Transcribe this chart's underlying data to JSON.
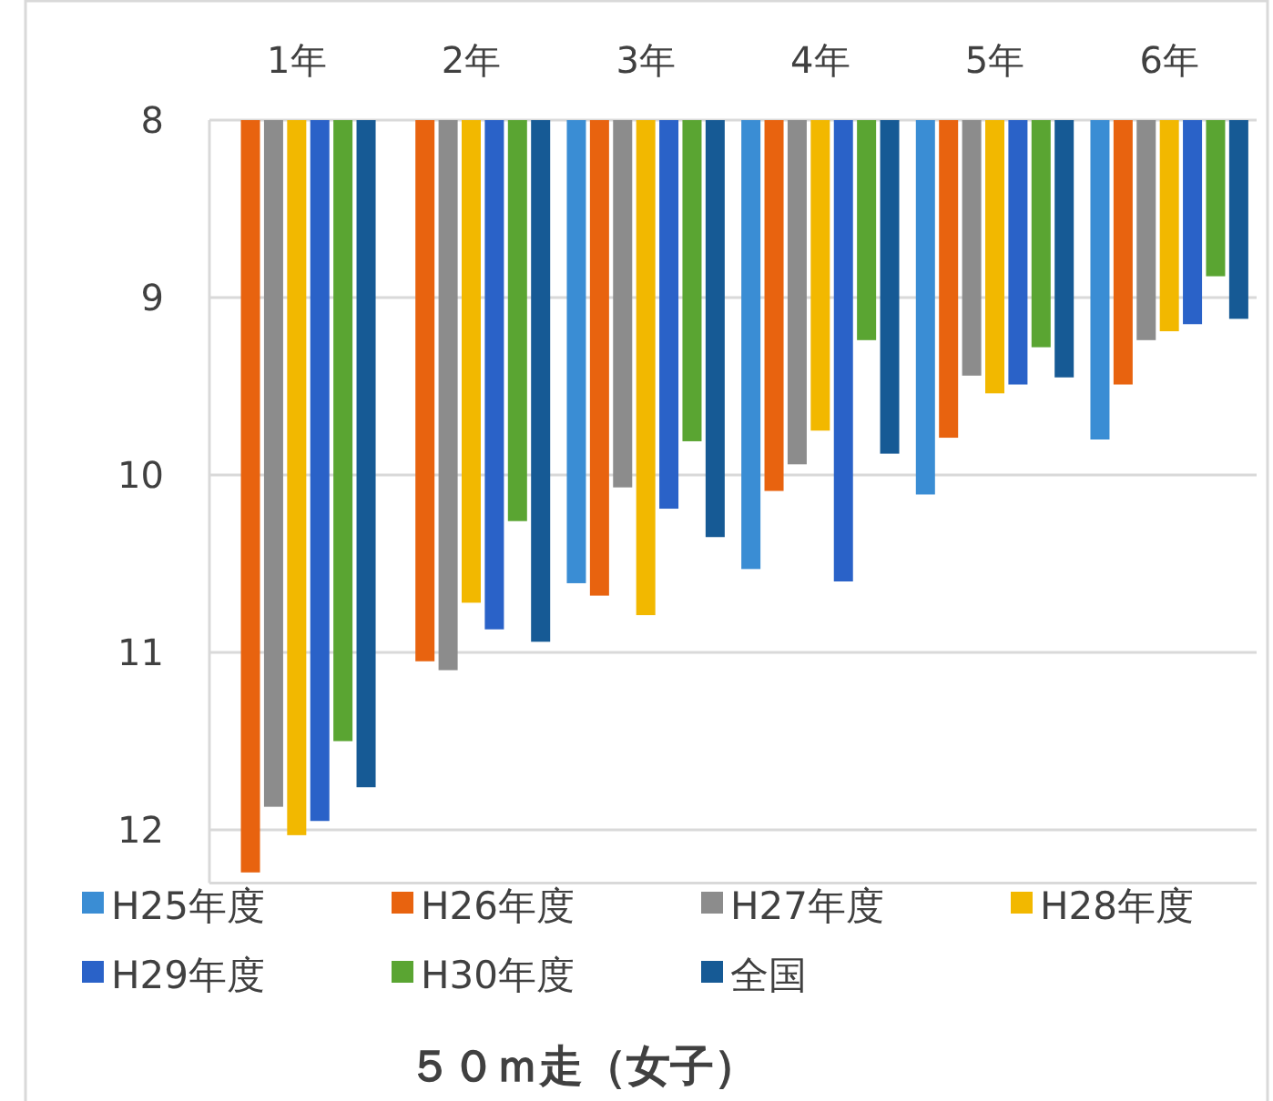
{
  "chart_data": {
    "type": "bar",
    "title": "５０ｍ走（女子）",
    "categories": [
      "1年",
      "2年",
      "3年",
      "4年",
      "5年",
      "6年"
    ],
    "series": [
      {
        "name": "H25年度",
        "color": "#3a8dd4",
        "values": [
          null,
          null,
          10.61,
          10.53,
          10.11,
          9.8
        ]
      },
      {
        "name": "H26年度",
        "color": "#e8630f",
        "values": [
          12.24,
          11.05,
          10.68,
          10.09,
          9.79,
          9.49
        ]
      },
      {
        "name": "H27年度",
        "color": "#8c8c8c",
        "values": [
          11.87,
          11.1,
          10.07,
          9.94,
          9.44,
          9.24
        ]
      },
      {
        "name": "H28年度",
        "color": "#f2b800",
        "values": [
          12.03,
          10.72,
          10.79,
          9.75,
          9.54,
          9.19
        ]
      },
      {
        "name": "H29年度",
        "color": "#2a62c8",
        "values": [
          11.95,
          10.87,
          10.19,
          10.6,
          9.49,
          9.15
        ]
      },
      {
        "name": "H30年度",
        "color": "#5aa532",
        "values": [
          11.5,
          10.26,
          9.81,
          9.24,
          9.28,
          8.88
        ]
      },
      {
        "name": "全国",
        "color": "#165a95",
        "values": [
          11.76,
          10.94,
          10.35,
          9.88,
          9.45,
          9.12
        ]
      }
    ],
    "ylim": [
      12.3,
      8
    ],
    "yticks": [
      8,
      9,
      10,
      11,
      12
    ],
    "grid": "y",
    "legend": "bottom"
  }
}
